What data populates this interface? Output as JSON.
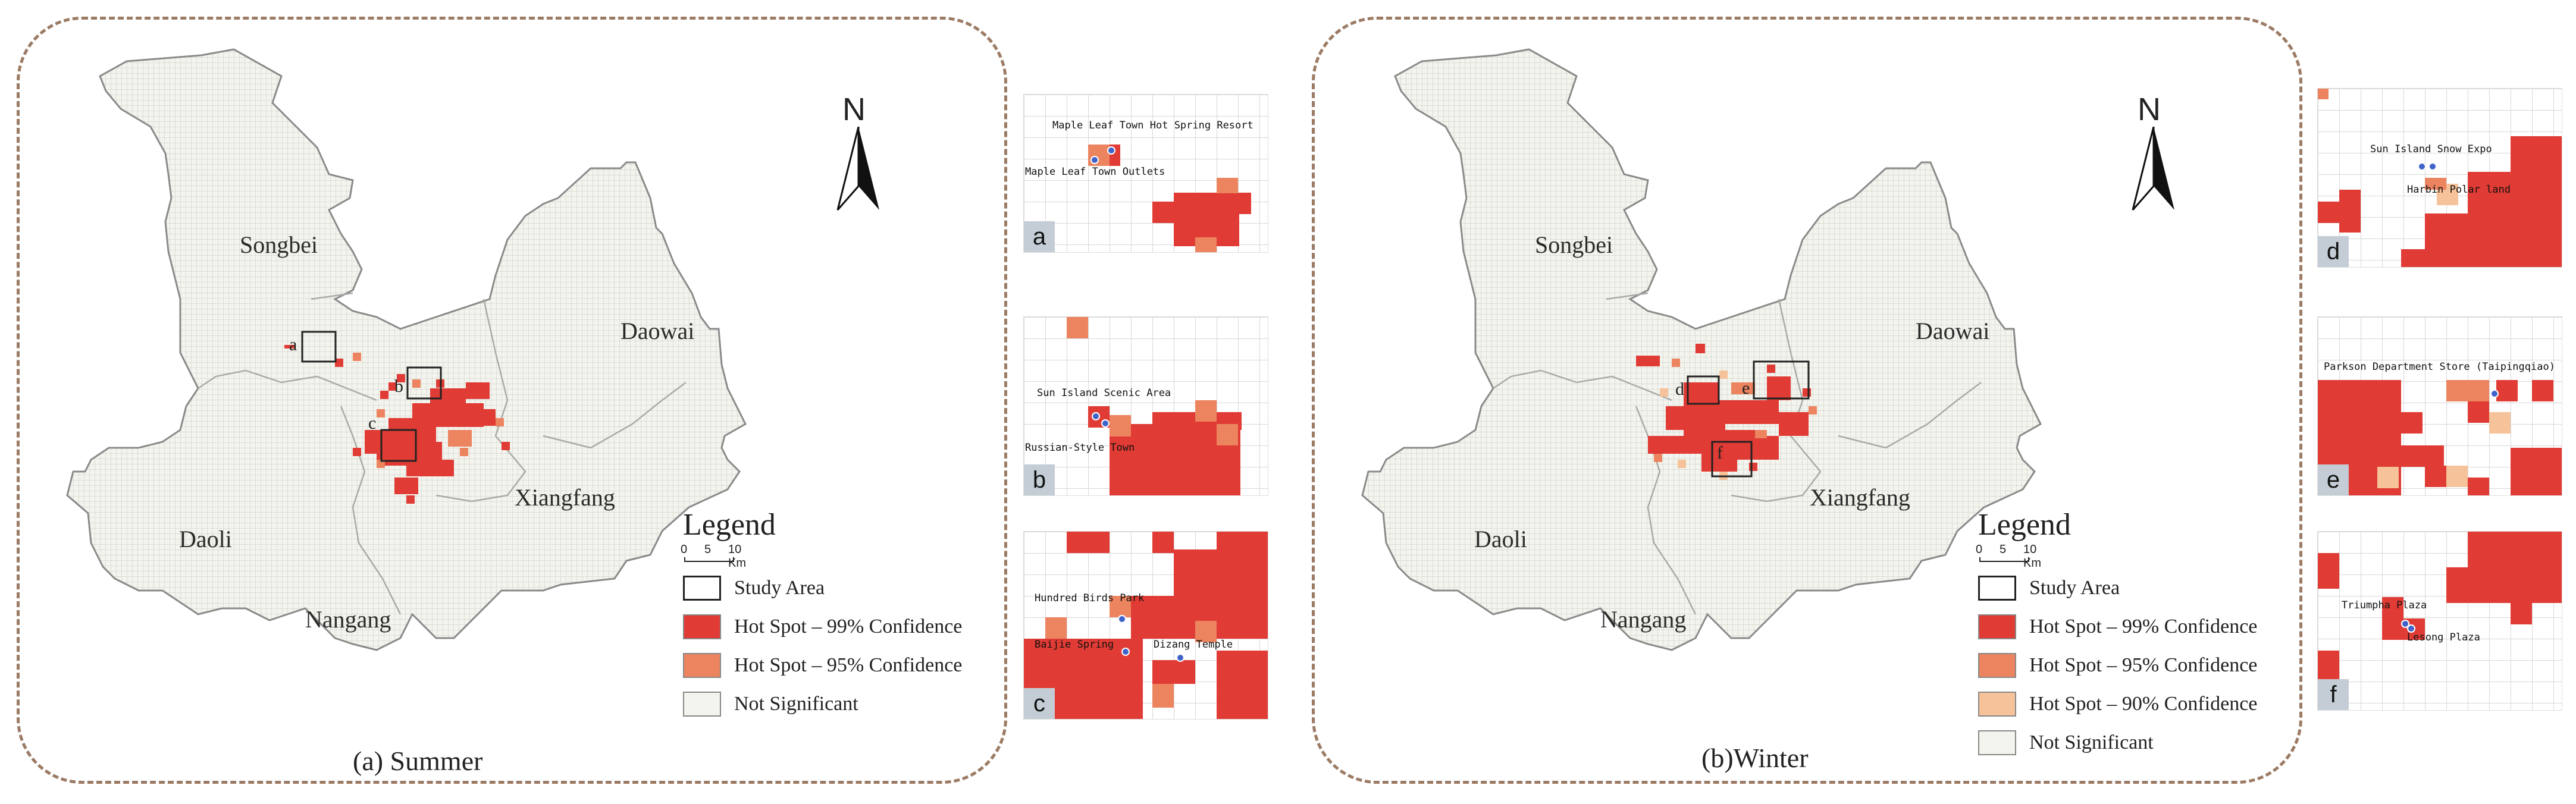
{
  "colors": {
    "hot99": "#e03b34",
    "hot95": "#ec8460",
    "hot90": "#f5c29a",
    "not_significant": "#f4f4ee",
    "boundary": "#9c9c9c",
    "poi_dot": "#3f63c9",
    "panel_border": "#9c7b64"
  },
  "summer": {
    "caption": "(a) Summer",
    "places": {
      "songbei": "Songbei",
      "daowai": "Daowai",
      "daoli": "Daoli",
      "xiangfang": "Xiangfang",
      "nangang": "Nangang"
    },
    "box_letters": {
      "a": "a",
      "b": "b",
      "c": "c"
    },
    "north": "N",
    "legend": {
      "title": "Legend",
      "scale_labels": [
        "0",
        "5",
        "10 Km"
      ],
      "items": [
        {
          "label": "Study Area",
          "swatch": "#ffffff"
        },
        {
          "label": "Hot Spot – 99% Confidence",
          "swatch": "#e03b34"
        },
        {
          "label": "Hot Spot – 95% Confidence",
          "swatch": "#ec8460"
        },
        {
          "label": "Not Significant",
          "swatch": "#f4f4ee"
        }
      ]
    }
  },
  "winter": {
    "caption": "(b)Winter",
    "places": {
      "songbei": "Songbei",
      "daowai": "Daowai",
      "daoli": "Daoli",
      "xiangfang": "Xiangfang",
      "nangang": "Nangang"
    },
    "box_letters": {
      "d": "d",
      "e": "e",
      "f": "f"
    },
    "north": "N",
    "legend": {
      "title": "Legend",
      "scale_labels": [
        "0",
        "5",
        "10 Km"
      ],
      "items": [
        {
          "label": "Study Area",
          "swatch": "#ffffff"
        },
        {
          "label": "Hot Spot – 99% Confidence",
          "swatch": "#e03b34"
        },
        {
          "label": "Hot Spot – 95% Confidence",
          "swatch": "#ec8460"
        },
        {
          "label": "Hot Spot – 90% Confidence",
          "swatch": "#f5c29a"
        },
        {
          "label": "Not Significant",
          "swatch": "#f4f4ee"
        }
      ]
    }
  },
  "insets": {
    "a": {
      "tag": "a",
      "pois": [
        "Maple Leaf Town Hot Spring Resort",
        "Maple Leaf Town Outlets"
      ]
    },
    "b": {
      "tag": "b",
      "pois": [
        "Sun Island Scenic Area",
        "Russian-Style Town"
      ]
    },
    "c": {
      "tag": "c",
      "pois": [
        "Hundred Birds Park",
        "Baijie Spring",
        "Dizang Temple"
      ]
    },
    "d": {
      "tag": "d",
      "pois": [
        "Sun Island Snow Expo",
        "Harbin Polar land"
      ]
    },
    "e": {
      "tag": "e",
      "pois": [
        "Parkson Department Store (Taipingqiao)"
      ]
    },
    "f": {
      "tag": "f",
      "pois": [
        "Triumpha Plaza",
        "Lesong Plaza"
      ]
    }
  }
}
